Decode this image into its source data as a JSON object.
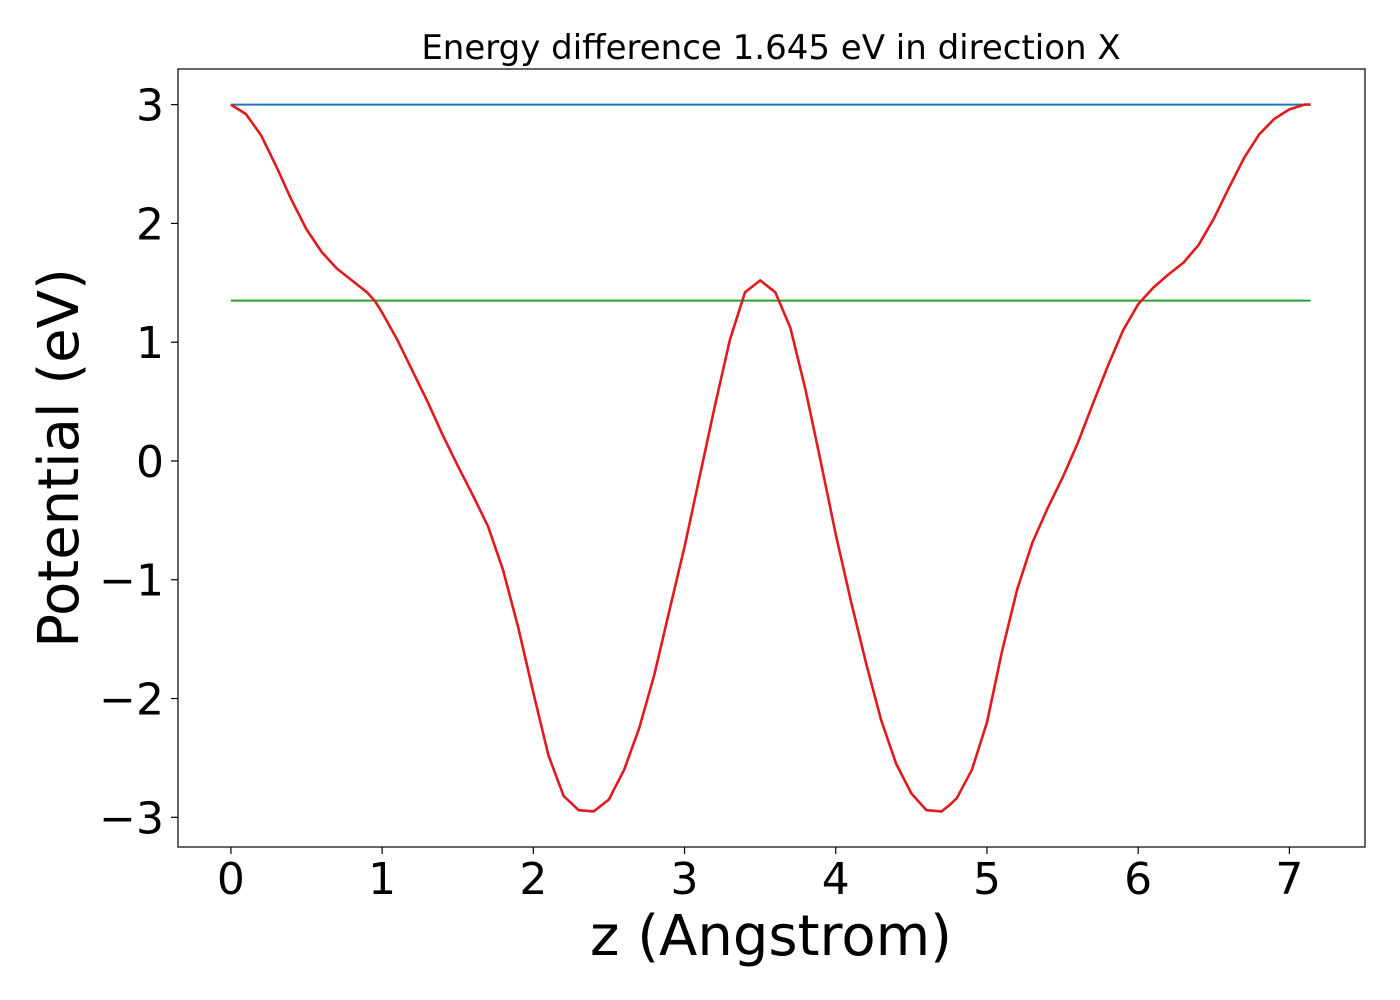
{
  "chart_data": {
    "type": "line",
    "title": "Energy difference 1.645 eV in direction X",
    "xlabel": "z (Angstrom)",
    "ylabel": "Potential (eV)",
    "xlim": [
      -0.35,
      7.5
    ],
    "ylim": [
      -3.25,
      3.3
    ],
    "xticks": [
      0,
      1,
      2,
      3,
      4,
      5,
      6,
      7
    ],
    "xtick_labels": [
      "0",
      "1",
      "2",
      "3",
      "4",
      "5",
      "6",
      "7"
    ],
    "yticks": [
      3,
      2,
      1,
      0,
      -1,
      -2,
      -3
    ],
    "ytick_labels": [
      "3",
      "2",
      "1",
      "0",
      "−1",
      "−2",
      "−3"
    ],
    "grid": false,
    "series": [
      {
        "color": "#1f77b4",
        "x": [
          0,
          7.14
        ],
        "y": [
          3.0,
          3.0
        ]
      },
      {
        "color": "#2ca02c",
        "x": [
          0,
          7.14
        ],
        "y": [
          1.35,
          1.35
        ]
      },
      {
        "color": "#e31a1c",
        "x": [
          0,
          0.05,
          0.1,
          0.2,
          0.3,
          0.4,
          0.5,
          0.6,
          0.7,
          0.8,
          0.9,
          0.95,
          1.0,
          1.1,
          1.2,
          1.3,
          1.4,
          1.5,
          1.6,
          1.7,
          1.8,
          1.9,
          2.0,
          2.1,
          2.2,
          2.3,
          2.4,
          2.45,
          2.5,
          2.6,
          2.7,
          2.8,
          2.9,
          3.0,
          3.1,
          3.2,
          3.3,
          3.4,
          3.5,
          3.6,
          3.7,
          3.8,
          3.9,
          4.0,
          4.1,
          4.2,
          4.3,
          4.4,
          4.5,
          4.6,
          4.7,
          4.75,
          4.8,
          4.9,
          5.0,
          5.1,
          5.2,
          5.3,
          5.4,
          5.5,
          5.6,
          5.7,
          5.8,
          5.9,
          6.0,
          6.1,
          6.2,
          6.3,
          6.4,
          6.5,
          6.6,
          6.7,
          6.8,
          6.9,
          7.0,
          7.05,
          7.1,
          7.14
        ],
        "y": [
          3.0,
          2.96,
          2.92,
          2.74,
          2.48,
          2.2,
          1.95,
          1.76,
          1.62,
          1.52,
          1.42,
          1.35,
          1.25,
          1.02,
          0.76,
          0.5,
          0.22,
          -0.04,
          -0.29,
          -0.55,
          -0.92,
          -1.4,
          -1.95,
          -2.48,
          -2.82,
          -2.94,
          -2.95,
          -2.9,
          -2.85,
          -2.6,
          -2.25,
          -1.8,
          -1.26,
          -0.72,
          -0.13,
          0.46,
          1.02,
          1.42,
          1.52,
          1.42,
          1.12,
          0.6,
          0.0,
          -0.62,
          -1.18,
          -1.7,
          -2.18,
          -2.55,
          -2.8,
          -2.94,
          -2.95,
          -2.9,
          -2.84,
          -2.6,
          -2.2,
          -1.6,
          -1.08,
          -0.69,
          -0.4,
          -0.14,
          0.15,
          0.48,
          0.8,
          1.1,
          1.32,
          1.46,
          1.57,
          1.67,
          1.82,
          2.04,
          2.3,
          2.55,
          2.75,
          2.88,
          2.96,
          2.98,
          3.0,
          3.0
        ]
      }
    ]
  }
}
